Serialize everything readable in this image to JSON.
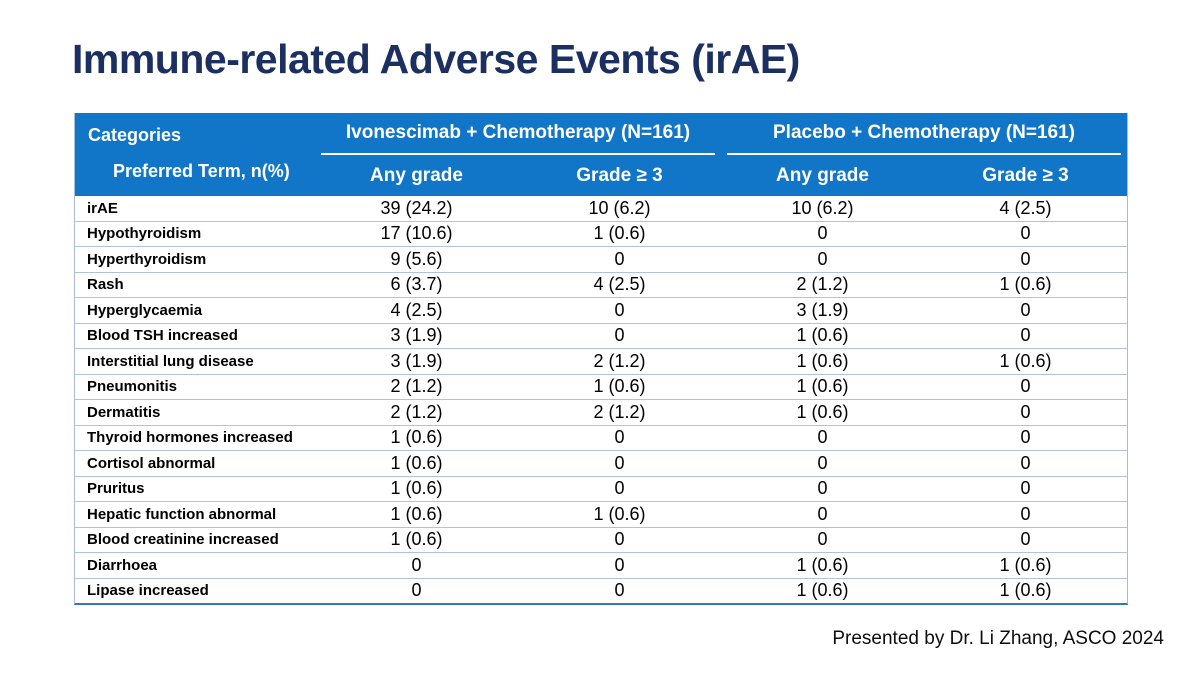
{
  "slide": {
    "title": "Immune-related Adverse Events (irAE)",
    "footer": "Presented by Dr. Li Zhang, ASCO 2024"
  },
  "colors": {
    "title": "#1B3060",
    "header_bg": "#1176C8",
    "header_text": "#FFFFFF",
    "row_border": "#AFC3D9",
    "side_border": "#A9BCD3",
    "bottom_border": "#3576BE",
    "body_text": "#000000"
  },
  "table": {
    "corner": {
      "line1": "Categories",
      "line2": "Preferred Term, n(%)"
    },
    "groups": [
      {
        "label": "Ivonescimab + Chemotherapy (N=161)",
        "columns": [
          "Any grade",
          "Grade ≥ 3"
        ]
      },
      {
        "label": "Placebo + Chemotherapy (N=161)",
        "columns": [
          "Any grade",
          "Grade ≥ 3"
        ]
      }
    ],
    "rows": [
      {
        "term": "irAE",
        "values": [
          "39 (24.2)",
          "10 (6.2)",
          "10 (6.2)",
          "4 (2.5)"
        ]
      },
      {
        "term": "Hypothyroidism",
        "values": [
          "17 (10.6)",
          "1 (0.6)",
          "0",
          "0"
        ]
      },
      {
        "term": "Hyperthyroidism",
        "values": [
          "9 (5.6)",
          "0",
          "0",
          "0"
        ]
      },
      {
        "term": "Rash",
        "values": [
          "6 (3.7)",
          "4 (2.5)",
          "2 (1.2)",
          "1 (0.6)"
        ]
      },
      {
        "term": "Hyperglycaemia",
        "values": [
          "4 (2.5)",
          "0",
          "3 (1.9)",
          "0"
        ]
      },
      {
        "term": "Blood TSH increased",
        "values": [
          "3 (1.9)",
          "0",
          "1 (0.6)",
          "0"
        ]
      },
      {
        "term": "Interstitial lung disease",
        "values": [
          "3 (1.9)",
          "2 (1.2)",
          "1 (0.6)",
          "1 (0.6)"
        ]
      },
      {
        "term": "Pneumonitis",
        "values": [
          "2 (1.2)",
          "1 (0.6)",
          "1 (0.6)",
          "0"
        ]
      },
      {
        "term": "Dermatitis",
        "values": [
          "2 (1.2)",
          "2 (1.2)",
          "1 (0.6)",
          "0"
        ]
      },
      {
        "term": "Thyroid hormones increased",
        "values": [
          "1 (0.6)",
          "0",
          "0",
          "0"
        ]
      },
      {
        "term": "Cortisol abnormal",
        "values": [
          "1 (0.6)",
          "0",
          "0",
          "0"
        ]
      },
      {
        "term": "Pruritus",
        "values": [
          "1 (0.6)",
          "0",
          "0",
          "0"
        ]
      },
      {
        "term": "Hepatic function abnormal",
        "values": [
          "1 (0.6)",
          "1 (0.6)",
          "0",
          "0"
        ]
      },
      {
        "term": "Blood creatinine increased",
        "values": [
          "1 (0.6)",
          "0",
          "0",
          "0"
        ]
      },
      {
        "term": "Diarrhoea",
        "values": [
          "0",
          "0",
          "1 (0.6)",
          "1 (0.6)"
        ]
      },
      {
        "term": "Lipase increased",
        "values": [
          "0",
          "0",
          "1 (0.6)",
          "1 (0.6)"
        ]
      }
    ]
  }
}
